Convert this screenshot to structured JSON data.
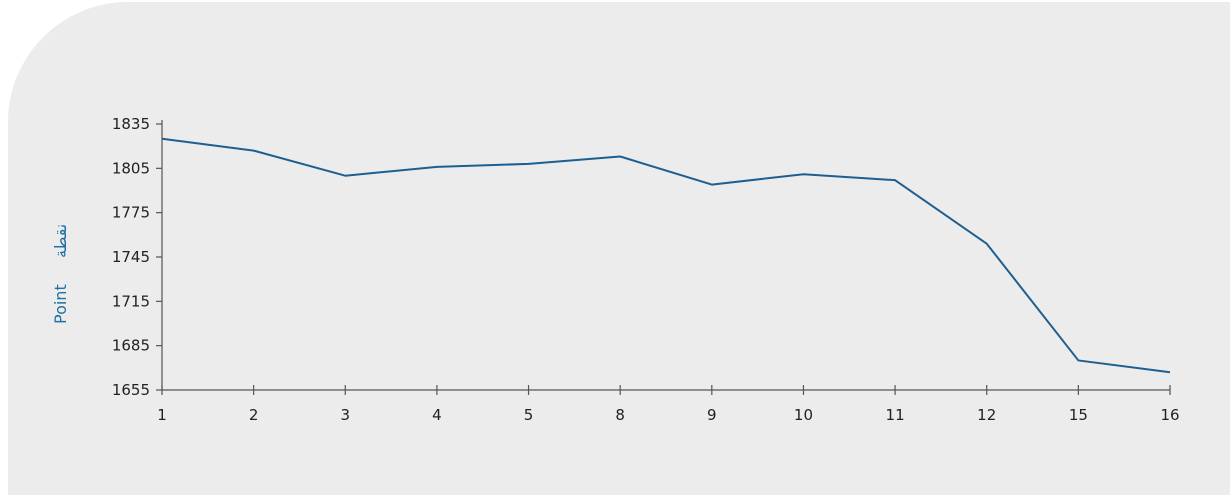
{
  "chart_data": {
    "type": "line",
    "categories": [
      "1",
      "2",
      "3",
      "4",
      "5",
      "8",
      "9",
      "10",
      "11",
      "12",
      "15",
      "16"
    ],
    "series": [
      {
        "values": [
          1825,
          1817,
          1800,
          1806,
          1808,
          1813,
          1794,
          1801,
          1797,
          1754,
          1675,
          1667
        ]
      }
    ],
    "ylabel": "Point نقطة",
    "ylabel_parts": [
      "Point",
      "نقطة"
    ],
    "yticks": [
      1655,
      1685,
      1715,
      1745,
      1775,
      1805,
      1835
    ],
    "ylim": [
      1655,
      1835
    ],
    "grid": false,
    "line_color": "#1f5f8f",
    "label_color": "#1f6fa3",
    "background_color": "#ececed"
  }
}
